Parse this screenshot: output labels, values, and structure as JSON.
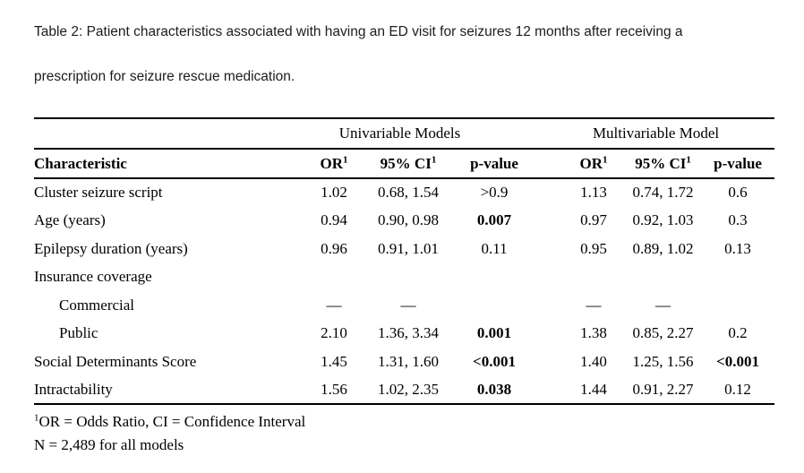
{
  "caption": {
    "line1": "Table 2: Patient characteristics associated with having an ED visit for seizures 12 months after receiving a",
    "line2": "prescription for seizure rescue medication."
  },
  "table": {
    "spanners": [
      "Univariable Models",
      "Multivariable Model"
    ],
    "col_headers": {
      "characteristic": "Characteristic",
      "or": "OR",
      "ci": "95% CI",
      "p": "p-value",
      "sup": "1"
    },
    "rows": [
      {
        "label": "Cluster seizure script",
        "indent": false,
        "uni": {
          "or": "1.02",
          "ci": "0.68, 1.54",
          "p": ">0.9",
          "p_bold": false
        },
        "multi": {
          "or": "1.13",
          "ci": "0.74, 1.72",
          "p": "0.6",
          "p_bold": false
        }
      },
      {
        "label": "Age (years)",
        "indent": false,
        "uni": {
          "or": "0.94",
          "ci": "0.90, 0.98",
          "p": "0.007",
          "p_bold": true
        },
        "multi": {
          "or": "0.97",
          "ci": "0.92, 1.03",
          "p": "0.3",
          "p_bold": false
        }
      },
      {
        "label": "Epilepsy duration (years)",
        "indent": false,
        "uni": {
          "or": "0.96",
          "ci": "0.91, 1.01",
          "p": "0.11",
          "p_bold": false
        },
        "multi": {
          "or": "0.95",
          "ci": "0.89, 1.02",
          "p": "0.13",
          "p_bold": false
        }
      },
      {
        "label": "Insurance coverage",
        "indent": false,
        "uni": {
          "or": "",
          "ci": "",
          "p": "",
          "p_bold": false
        },
        "multi": {
          "or": "",
          "ci": "",
          "p": "",
          "p_bold": false
        }
      },
      {
        "label": "Commercial",
        "indent": true,
        "uni": {
          "or": "—",
          "ci": "—",
          "p": "",
          "p_bold": false
        },
        "multi": {
          "or": "—",
          "ci": "—",
          "p": "",
          "p_bold": false
        }
      },
      {
        "label": "Public",
        "indent": true,
        "uni": {
          "or": "2.10",
          "ci": "1.36, 3.34",
          "p": "0.001",
          "p_bold": true
        },
        "multi": {
          "or": "1.38",
          "ci": "0.85, 2.27",
          "p": "0.2",
          "p_bold": false
        }
      },
      {
        "label": "Social Determinants Score",
        "indent": false,
        "uni": {
          "or": "1.45",
          "ci": "1.31, 1.60",
          "p": "<0.001",
          "p_bold": true
        },
        "multi": {
          "or": "1.40",
          "ci": "1.25, 1.56",
          "p": "<0.001",
          "p_bold": true
        }
      },
      {
        "label": "Intractability",
        "indent": false,
        "uni": {
          "or": "1.56",
          "ci": "1.02, 2.35",
          "p": "0.038",
          "p_bold": true
        },
        "multi": {
          "or": "1.44",
          "ci": "0.91, 2.27",
          "p": "0.12",
          "p_bold": false
        }
      }
    ],
    "footnote_sup": "1",
    "footnotes": [
      "OR = Odds Ratio, CI = Confidence Interval",
      "N = 2,489 for all models"
    ]
  }
}
